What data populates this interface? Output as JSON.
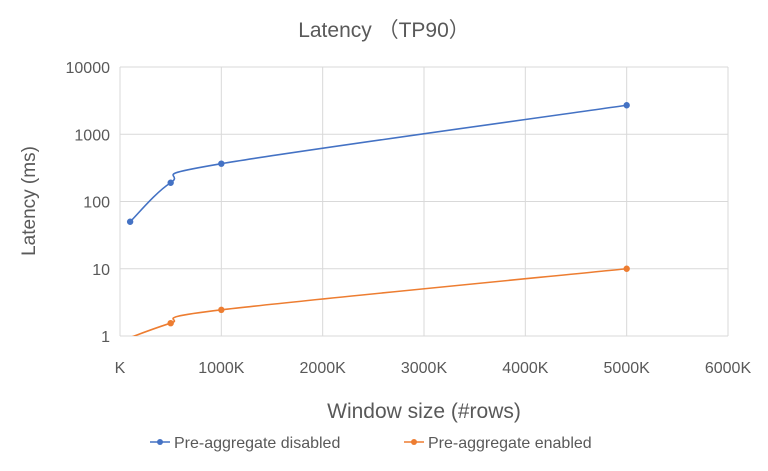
{
  "chart_data": {
    "type": "line",
    "title": "Latency （TP90）",
    "xlabel": "Window size (#rows)",
    "ylabel": "Latency (ms)",
    "y_scale": "log",
    "ylim": [
      1,
      10000
    ],
    "xlim": [
      0,
      6000000
    ],
    "x_ticks": [
      0,
      1000000,
      2000000,
      3000000,
      4000000,
      5000000,
      6000000
    ],
    "x_tick_labels": [
      "K",
      "1000K",
      "2000K",
      "3000K",
      "4000K",
      "5000K",
      "6000K"
    ],
    "y_ticks": [
      1,
      10,
      100,
      1000,
      10000
    ],
    "y_tick_labels": [
      "1",
      "10",
      "100",
      "1000",
      "10000"
    ],
    "grid": true,
    "legend_position": "bottom",
    "series": [
      {
        "name": "Pre-aggregate disabled",
        "color": "#4472C4",
        "x": [
          100000,
          500000,
          1000000,
          5000000
        ],
        "y": [
          50,
          190,
          365,
          2700
        ]
      },
      {
        "name": "Pre-aggregate enabled",
        "color": "#ED7D31",
        "x": [
          100000,
          500000,
          1000000,
          5000000
        ],
        "y": [
          0.95,
          1.55,
          2.45,
          10
        ]
      }
    ]
  }
}
